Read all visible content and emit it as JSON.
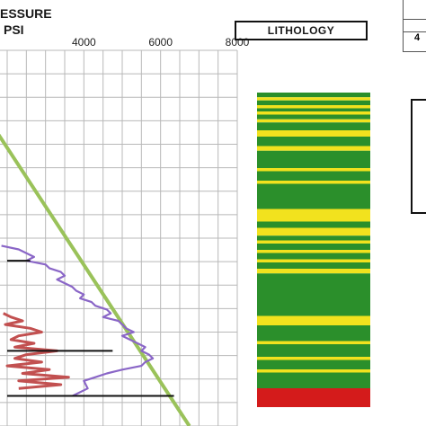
{
  "header": {
    "pressure_title_line1": "ESSURE",
    "pressure_title_line2": "PSI",
    "lithology_title": "LITHOLOGY",
    "table_fragment_text": "4"
  },
  "colors": {
    "grid": "#b8b8b8",
    "frac_line": "#9ac25a",
    "pore_pressure": "#8a66c7",
    "mud_weight": "#c25050",
    "marker": "#111111",
    "sand": "#f2e21e",
    "shale": "#2b8f2b",
    "red_bed": "#d41b1b"
  },
  "chart_data": [
    {
      "type": "line",
      "title": "",
      "xlabel": "PSI",
      "ylabel": "",
      "xlim": [
        2000,
        8000
      ],
      "ylim": [
        0,
        100
      ],
      "x_ticks": [
        "4000",
        "6000",
        "8000"
      ],
      "x_tick_values": [
        4000,
        6000,
        8000
      ],
      "grid": true,
      "series": [
        {
          "kind": "fracture-gradient",
          "x": [
            1650,
            6750
          ],
          "y": [
            20.5,
            100
          ]
        },
        {
          "kind": "pore-pressure",
          "x": [
            1850,
            2300,
            2700,
            2500,
            3000,
            3100,
            3400,
            3500,
            3300,
            3700,
            3800,
            4000,
            3900,
            4200,
            4300,
            4600,
            4700,
            4500,
            4900,
            5000,
            5100,
            5300,
            5000,
            5400,
            5600,
            5500,
            5700,
            5800,
            5600,
            5500,
            5000,
            4600,
            4300,
            4000,
            4100,
            3700
          ],
          "y": [
            52,
            53,
            55,
            56,
            57,
            58,
            59,
            60,
            61,
            63,
            64,
            65,
            66,
            67,
            68,
            69,
            70,
            71,
            72,
            73,
            74,
            75,
            76,
            78,
            79,
            80,
            81,
            82,
            83,
            84,
            85,
            86,
            87,
            88,
            90,
            92
          ]
        },
        {
          "kind": "mud-weight",
          "x": [
            1900,
            2100,
            2400,
            1950,
            2600,
            2900,
            2300,
            2100,
            2700,
            2200,
            3300,
            2500,
            2200,
            2900,
            2000,
            3100,
            2400,
            3600,
            2300,
            3400,
            2300
          ],
          "y": [
            70,
            71,
            72,
            73,
            74,
            75,
            76,
            77,
            78,
            79,
            80,
            81,
            82,
            83,
            84,
            85,
            86,
            87,
            88,
            89,
            90
          ]
        }
      ],
      "markers": [
        {
          "x": [
            2000,
            2600
          ],
          "y": 56
        },
        {
          "x": [
            2000,
            4750
          ],
          "y": 80
        },
        {
          "x": [
            2000,
            6350
          ],
          "y": 92
        }
      ]
    },
    {
      "type": "column",
      "title": "LITHOLOGY",
      "depth_range": [
        0,
        100
      ],
      "layers": [
        {
          "from": 0,
          "to": 1.5,
          "lith": "shale"
        },
        {
          "from": 1.5,
          "to": 2.5,
          "lith": "sand"
        },
        {
          "from": 2.5,
          "to": 4,
          "lith": "shale"
        },
        {
          "from": 4,
          "to": 5,
          "lith": "sand"
        },
        {
          "from": 5,
          "to": 6,
          "lith": "shale"
        },
        {
          "from": 6,
          "to": 7,
          "lith": "sand"
        },
        {
          "from": 7,
          "to": 8.5,
          "lith": "shale"
        },
        {
          "from": 8.5,
          "to": 9.5,
          "lith": "sand"
        },
        {
          "from": 9.5,
          "to": 12,
          "lith": "shale"
        },
        {
          "from": 12,
          "to": 14,
          "lith": "sand"
        },
        {
          "from": 14,
          "to": 17,
          "lith": "shale"
        },
        {
          "from": 17,
          "to": 18.5,
          "lith": "sand"
        },
        {
          "from": 18.5,
          "to": 24,
          "lith": "shale"
        },
        {
          "from": 24,
          "to": 25,
          "lith": "sand"
        },
        {
          "from": 25,
          "to": 28,
          "lith": "shale"
        },
        {
          "from": 28,
          "to": 29,
          "lith": "sand"
        },
        {
          "from": 29,
          "to": 37,
          "lith": "shale"
        },
        {
          "from": 37,
          "to": 41,
          "lith": "sand"
        },
        {
          "from": 41,
          "to": 43,
          "lith": "shale"
        },
        {
          "from": 43,
          "to": 45.5,
          "lith": "sand"
        },
        {
          "from": 45.5,
          "to": 47,
          "lith": "shale"
        },
        {
          "from": 47,
          "to": 48,
          "lith": "sand"
        },
        {
          "from": 48,
          "to": 50,
          "lith": "shale"
        },
        {
          "from": 50,
          "to": 51,
          "lith": "sand"
        },
        {
          "from": 51,
          "to": 53,
          "lith": "shale"
        },
        {
          "from": 53,
          "to": 54,
          "lith": "sand"
        },
        {
          "from": 54,
          "to": 56,
          "lith": "shale"
        },
        {
          "from": 56,
          "to": 57.5,
          "lith": "sand"
        },
        {
          "from": 57.5,
          "to": 71,
          "lith": "shale"
        },
        {
          "from": 71,
          "to": 74,
          "lith": "sand"
        },
        {
          "from": 74,
          "to": 79,
          "lith": "shale"
        },
        {
          "from": 79,
          "to": 80,
          "lith": "sand"
        },
        {
          "from": 80,
          "to": 84,
          "lith": "shale"
        },
        {
          "from": 84,
          "to": 85,
          "lith": "sand"
        },
        {
          "from": 85,
          "to": 88,
          "lith": "shale"
        },
        {
          "from": 88,
          "to": 89,
          "lith": "sand"
        },
        {
          "from": 89,
          "to": 94,
          "lith": "shale"
        },
        {
          "from": 94,
          "to": 100,
          "lith": "red_bed"
        }
      ]
    }
  ]
}
